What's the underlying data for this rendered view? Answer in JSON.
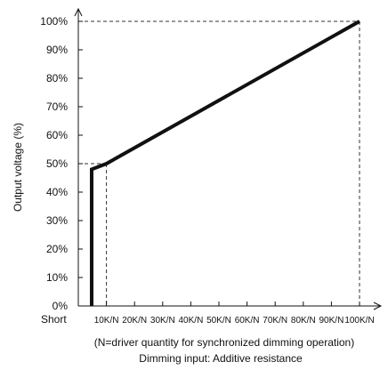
{
  "chart_data": {
    "type": "line",
    "ylabel": "Output voltage (%)",
    "xlabel": "Dimming input: Additive resistance",
    "x_note": "(N=driver quantity for synchronized dimming operation)",
    "x_start_label": "Short",
    "x_ticks": [
      "10K/N",
      "20K/N",
      "30K/N",
      "40K/N",
      "50K/N",
      "60K/N",
      "70K/N",
      "80K/N",
      "90K/N",
      "100K/N"
    ],
    "x_tick_values": [
      10,
      20,
      30,
      40,
      50,
      60,
      70,
      80,
      90,
      100
    ],
    "y_ticks": [
      "0%",
      "10%",
      "20%",
      "30%",
      "40%",
      "50%",
      "60%",
      "70%",
      "80%",
      "90%",
      "100%"
    ],
    "y_tick_values": [
      0,
      10,
      20,
      30,
      40,
      50,
      60,
      70,
      80,
      90,
      100
    ],
    "xlim": [
      0,
      100
    ],
    "ylim": [
      0,
      100
    ],
    "series": [
      {
        "points": [
          [
            0,
            0
          ],
          [
            0,
            48
          ],
          [
            10,
            50
          ],
          [
            100,
            100
          ]
        ]
      }
    ],
    "reference_lines": {
      "y_at_50": 50,
      "x_at_10": 10,
      "y_at_100": 100,
      "x_at_100": 100
    },
    "grid": false
  }
}
